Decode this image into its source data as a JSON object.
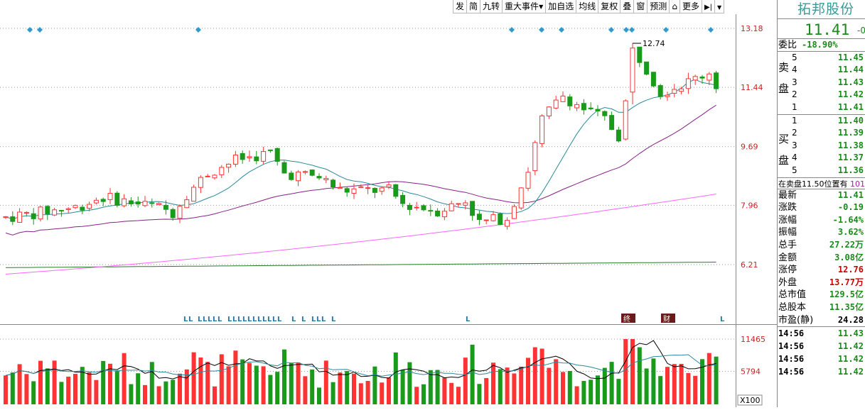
{
  "toolbar": {
    "buttons": [
      {
        "name": "toolbar-fa",
        "label": "发"
      },
      {
        "name": "toolbar-jian",
        "label": "简"
      },
      {
        "name": "toolbar-jiuzhuan",
        "label": "九转"
      },
      {
        "name": "toolbar-major-events",
        "label": "重大事件",
        "dropdown": true
      },
      {
        "name": "toolbar-add-watchlist",
        "label": "加自选"
      },
      {
        "name": "toolbar-moving-avg",
        "label": "均线"
      },
      {
        "name": "toolbar-adjust",
        "label": "复权"
      },
      {
        "name": "toolbar-overlay",
        "label": "叠"
      },
      {
        "name": "toolbar-window",
        "label": "窗"
      },
      {
        "name": "toolbar-forecast",
        "label": "预测"
      },
      {
        "name": "toolbar-lock",
        "label": "",
        "icon": "lock-icon"
      },
      {
        "name": "toolbar-more",
        "label": "更多"
      },
      {
        "name": "toolbar-collapse",
        "label": "",
        "icon": "collapse-right-icon"
      },
      {
        "name": "toolbar-menu",
        "label": "",
        "icon": "chevron-down-icon"
      }
    ]
  },
  "chart": {
    "price_labels": [
      "13.18",
      "11.44",
      "9.69",
      "7.96",
      "6.21"
    ],
    "high_annotation": "12.74",
    "volume_labels": [
      "11465",
      "5794"
    ],
    "volume_unit": "X100",
    "l_marker": "L",
    "event_labels": [
      "终",
      "财"
    ],
    "colors": {
      "up": "#ff3333",
      "down": "#1a9a1a",
      "ma5": "#2a8a9a",
      "ma10": "#882288",
      "ma20": "#ff66ff",
      "ma60": "#2a7a2a",
      "axis": "#cc2222",
      "marker": "#3399cc"
    }
  },
  "chart_data": {
    "type": "candlestick",
    "price_axis": [
      6.21,
      7.96,
      9.69,
      11.44,
      13.18
    ],
    "volume_axis": [
      5794,
      11465
    ],
    "annotations": [
      "12.74"
    ]
  },
  "panel": {
    "stock_name": "拓邦股份",
    "price": "11.41",
    "price_change_partial": "-0",
    "weibi_label": "委比",
    "weibi_value": "-18.90%",
    "sell_label": [
      "卖",
      "盘"
    ],
    "buy_label": [
      "买",
      "盘"
    ],
    "sell": [
      {
        "level": "5",
        "price": "11.45"
      },
      {
        "level": "4",
        "price": "11.44"
      },
      {
        "level": "3",
        "price": "11.43"
      },
      {
        "level": "2",
        "price": "11.42"
      },
      {
        "level": "1",
        "price": "11.41"
      }
    ],
    "buy": [
      {
        "level": "1",
        "price": "11.40"
      },
      {
        "level": "2",
        "price": "11.39"
      },
      {
        "level": "3",
        "price": "11.38"
      },
      {
        "level": "4",
        "price": "11.37"
      },
      {
        "level": "5",
        "price": "11.36"
      }
    ],
    "info_line_a": "在卖盘",
    "info_line_b": "11.50",
    "info_line_c": "位置有",
    "info_line_d": "101",
    "stats": [
      {
        "key": "最新",
        "value": "11.41",
        "color": "green"
      },
      {
        "key": "涨跌",
        "value": "-0.19",
        "color": "green"
      },
      {
        "key": "涨幅",
        "value": "-1.64%",
        "color": "green"
      },
      {
        "key": "振幅",
        "value": "3.62%",
        "color": "green"
      },
      {
        "key": "总手",
        "value": "27.22万",
        "color": "green"
      },
      {
        "key": "金额",
        "value": "3.08亿",
        "color": "green"
      },
      {
        "key": "涨停",
        "value": "12.76",
        "color": "red"
      },
      {
        "key": "外盘",
        "value": "13.77万",
        "color": "red"
      },
      {
        "key": "总市值",
        "value": "129.5亿",
        "color": "green"
      },
      {
        "key": "总股本",
        "value": "11.35亿",
        "color": "green"
      },
      {
        "key": "市盈(静)",
        "value": "24.28",
        "color": "black"
      }
    ],
    "ticks": [
      {
        "time": "14:56",
        "price": "11.43"
      },
      {
        "time": "14:56",
        "price": "11.42"
      },
      {
        "time": "14:56",
        "price": "11.42"
      },
      {
        "time": "14:56",
        "price": "11.42"
      }
    ]
  }
}
